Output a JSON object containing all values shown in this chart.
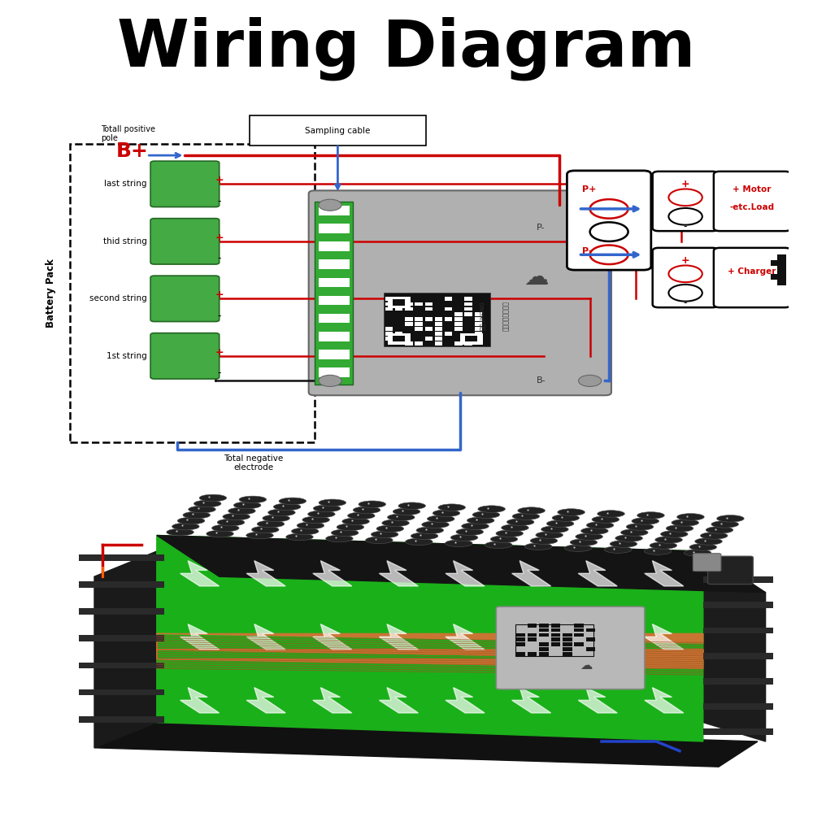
{
  "title": "Wiring Diagram",
  "title_fontsize": 58,
  "title_fontweight": "bold",
  "bg_color": "#ffffff",
  "wire_red": "#cc0000",
  "wire_blue": "#3366cc",
  "wire_black": "#111111",
  "battery_strings": [
    "last string",
    "thid string",
    "second string",
    "1st string"
  ],
  "bms_gray": "#b0b0b0",
  "bms_dark_gray": "#888888",
  "green_cell": "#44aa44",
  "green_connector": "#33aa33"
}
